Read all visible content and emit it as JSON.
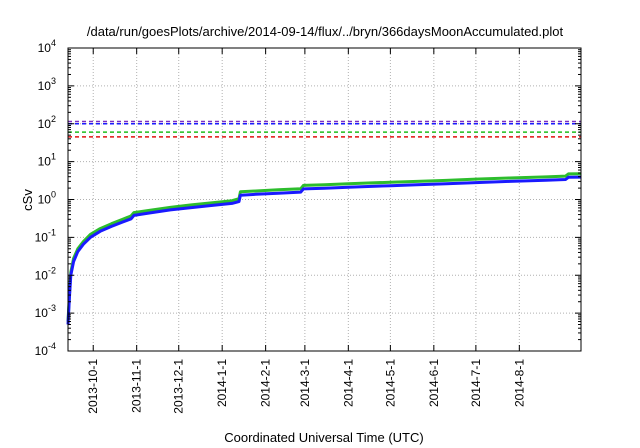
{
  "chart_data": {
    "type": "line",
    "title": "/data/run/goesPlots/archive/2014-09-14/flux/../bryn/366daysMoonAccumulated.plot",
    "xlabel": "Coordinated Universal Time (UTC)",
    "ylabel": "cSv",
    "yscale": "log",
    "ylim": [
      0.0001,
      10000
    ],
    "xlim": [
      "2013-09-13",
      "2014-09-14"
    ],
    "grid": true,
    "y_ticks": [
      {
        "base": "10",
        "exp": "-4",
        "value": 0.0001
      },
      {
        "base": "10",
        "exp": "-3",
        "value": 0.001
      },
      {
        "base": "10",
        "exp": "-2",
        "value": 0.01
      },
      {
        "base": "10",
        "exp": "-1",
        "value": 0.1
      },
      {
        "base": "10",
        "exp": "0",
        "value": 1
      },
      {
        "base": "10",
        "exp": "1",
        "value": 10
      },
      {
        "base": "10",
        "exp": "2",
        "value": 100
      },
      {
        "base": "10",
        "exp": "3",
        "value": 1000
      },
      {
        "base": "10",
        "exp": "4",
        "value": 10000
      }
    ],
    "x_ticks": [
      {
        "label": "2013-10-1",
        "date": "2013-10-01"
      },
      {
        "label": "2013-11-1",
        "date": "2013-11-01"
      },
      {
        "label": "2013-12-1",
        "date": "2013-12-01"
      },
      {
        "label": "2014-1-1",
        "date": "2014-01-01"
      },
      {
        "label": "2014-2-1",
        "date": "2014-02-01"
      },
      {
        "label": "2014-3-1",
        "date": "2014-03-01"
      },
      {
        "label": "2014-4-1",
        "date": "2014-04-01"
      },
      {
        "label": "2014-5-1",
        "date": "2014-05-01"
      },
      {
        "label": "2014-6-1",
        "date": "2014-06-01"
      },
      {
        "label": "2014-7-1",
        "date": "2014-07-01"
      },
      {
        "label": "2014-8-1",
        "date": "2014-08-01"
      }
    ],
    "reference_lines": [
      {
        "value": 115,
        "color": "#7b2fbf"
      },
      {
        "value": 100,
        "color": "#1a1aff"
      },
      {
        "value": 60,
        "color": "#1fbf1f"
      },
      {
        "value": 45,
        "color": "#e01010"
      }
    ],
    "series": [
      {
        "color": "#2dbd2d",
        "points": [
          [
            "2013-09-13",
            0.0006
          ],
          [
            "2013-09-14",
            0.003
          ],
          [
            "2013-09-15",
            0.012
          ],
          [
            "2013-09-17",
            0.028
          ],
          [
            "2013-09-20",
            0.05
          ],
          [
            "2013-09-24",
            0.078
          ],
          [
            "2013-09-29",
            0.12
          ],
          [
            "2013-10-06",
            0.17
          ],
          [
            "2013-10-14",
            0.23
          ],
          [
            "2013-10-22",
            0.3
          ],
          [
            "2013-10-28",
            0.37
          ],
          [
            "2013-10-30",
            0.45
          ],
          [
            "2013-11-10",
            0.52
          ],
          [
            "2013-11-25",
            0.62
          ],
          [
            "2013-12-10",
            0.72
          ],
          [
            "2013-12-25",
            0.82
          ],
          [
            "2014-01-08",
            0.93
          ],
          [
            "2014-01-13",
            1.05
          ],
          [
            "2014-01-14",
            1.6
          ],
          [
            "2014-01-25",
            1.68
          ],
          [
            "2014-02-10",
            1.8
          ],
          [
            "2014-02-26",
            1.93
          ],
          [
            "2014-02-28",
            2.35
          ],
          [
            "2014-03-15",
            2.45
          ],
          [
            "2014-04-01",
            2.6
          ],
          [
            "2014-04-15",
            2.72
          ],
          [
            "2014-05-01",
            2.85
          ],
          [
            "2014-05-20",
            3.0
          ],
          [
            "2014-06-10",
            3.2
          ],
          [
            "2014-07-01",
            3.45
          ],
          [
            "2014-07-25",
            3.7
          ],
          [
            "2014-08-20",
            3.95
          ],
          [
            "2014-09-03",
            4.15
          ],
          [
            "2014-09-05",
            4.75
          ],
          [
            "2014-09-14",
            4.8
          ]
        ]
      },
      {
        "color": "#1a1aff",
        "points": [
          [
            "2013-09-13",
            0.0005
          ],
          [
            "2013-09-14",
            0.0025
          ],
          [
            "2013-09-15",
            0.01
          ],
          [
            "2013-09-17",
            0.023
          ],
          [
            "2013-09-20",
            0.042
          ],
          [
            "2013-09-24",
            0.066
          ],
          [
            "2013-09-29",
            0.1
          ],
          [
            "2013-10-06",
            0.145
          ],
          [
            "2013-10-14",
            0.195
          ],
          [
            "2013-10-22",
            0.255
          ],
          [
            "2013-10-28",
            0.31
          ],
          [
            "2013-10-30",
            0.38
          ],
          [
            "2013-11-10",
            0.44
          ],
          [
            "2013-11-25",
            0.53
          ],
          [
            "2013-12-10",
            0.61
          ],
          [
            "2013-12-25",
            0.7
          ],
          [
            "2014-01-08",
            0.79
          ],
          [
            "2014-01-13",
            0.88
          ],
          [
            "2014-01-14",
            1.3
          ],
          [
            "2014-01-25",
            1.37
          ],
          [
            "2014-02-10",
            1.47
          ],
          [
            "2014-02-26",
            1.57
          ],
          [
            "2014-02-28",
            1.9
          ],
          [
            "2014-03-15",
            1.99
          ],
          [
            "2014-04-01",
            2.1
          ],
          [
            "2014-04-15",
            2.2
          ],
          [
            "2014-05-01",
            2.32
          ],
          [
            "2014-05-20",
            2.45
          ],
          [
            "2014-06-10",
            2.62
          ],
          [
            "2014-07-01",
            2.8
          ],
          [
            "2014-07-25",
            3.0
          ],
          [
            "2014-08-20",
            3.22
          ],
          [
            "2014-09-03",
            3.38
          ],
          [
            "2014-09-05",
            3.85
          ],
          [
            "2014-09-14",
            3.9
          ]
        ]
      }
    ]
  }
}
